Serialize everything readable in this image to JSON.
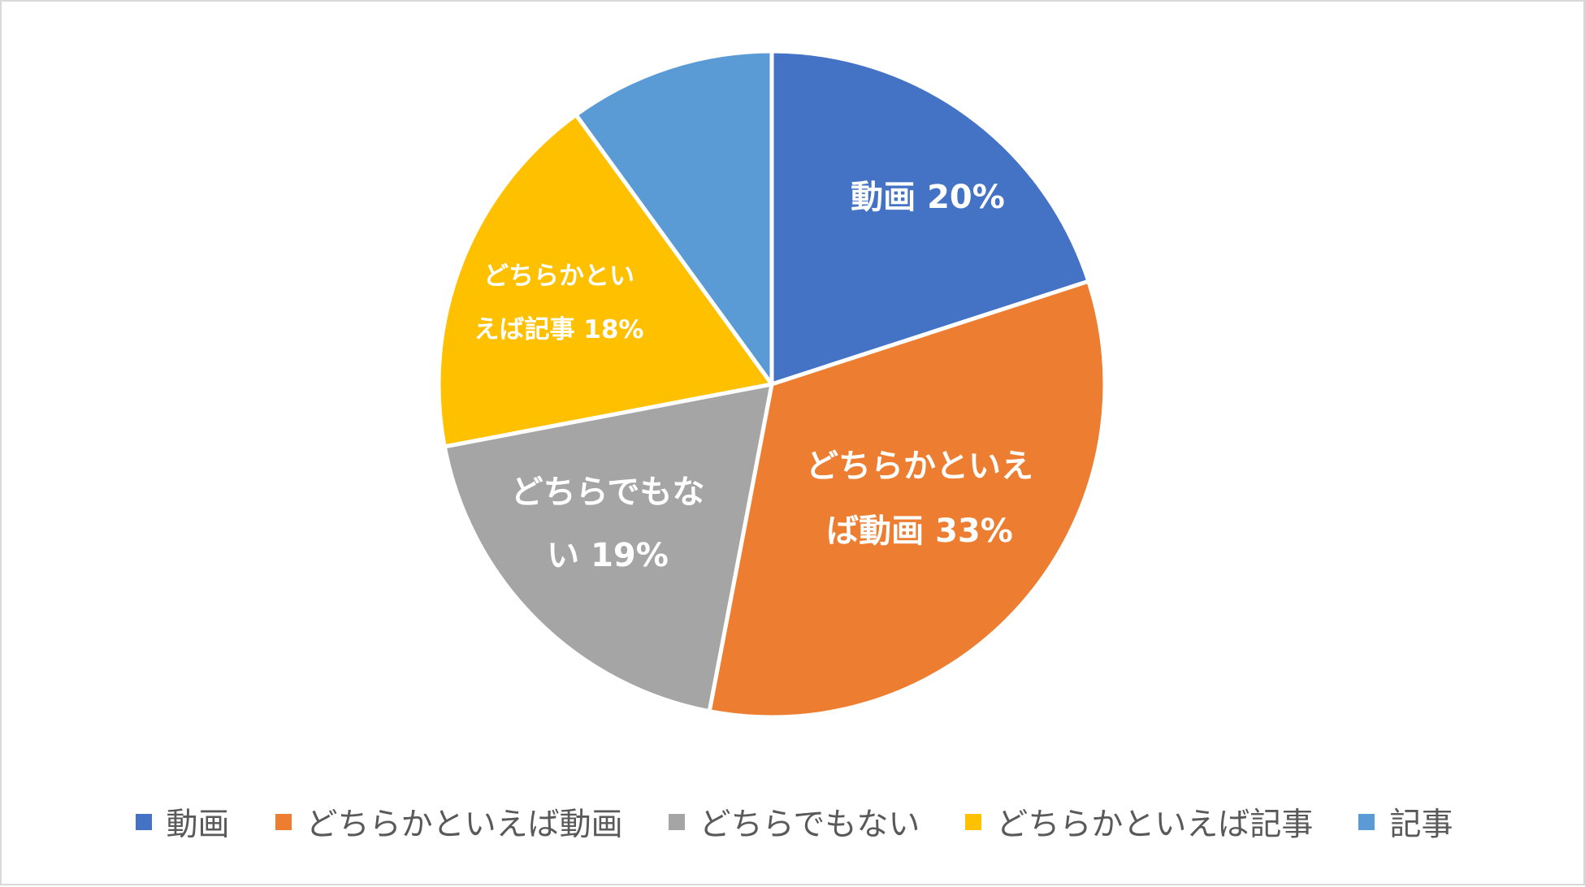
{
  "chart_data": {
    "type": "pie",
    "title": "",
    "start_angle": 0,
    "direction": "clockwise",
    "slices": [
      {
        "name": "動画",
        "value": 20,
        "color": "#4472C4",
        "label_lines": [
          "動画 20%"
        ]
      },
      {
        "name": "どちらかといえば動画",
        "value": 33,
        "color": "#ED7D31",
        "label_lines": [
          "どちらかといえ",
          "ば動画 33%"
        ]
      },
      {
        "name": "どちらでもない",
        "value": 19,
        "color": "#A5A5A5",
        "label_lines": [
          "どちらでもな",
          "い 19%"
        ]
      },
      {
        "name": "どちらかといえば記事",
        "value": 18,
        "color": "#FFC000",
        "label_lines": [
          "どちらかとい",
          "えば記事 18%"
        ]
      },
      {
        "name": "記事",
        "value": 10,
        "color": "#5B9BD5",
        "label_lines": []
      }
    ],
    "legend_position": "bottom"
  }
}
